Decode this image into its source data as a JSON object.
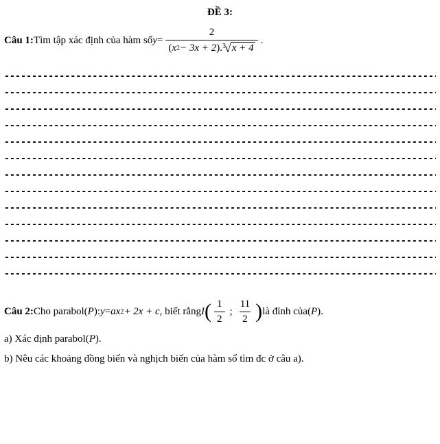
{
  "title": "ĐỀ 3:",
  "q1": {
    "label": "Câu 1:",
    "text_before": " Tìm tập xác định của hàm số  ",
    "lhs": "y",
    "eq": " = ",
    "numerator": "2",
    "den_poly_open": "(",
    "den_poly": "x",
    "den_poly_sup": "2",
    "den_poly_rest": " − 3x + 2",
    "den_poly_close": ")",
    "den_dot": ".",
    "root_index": "3",
    "radicand": "x + 4",
    "period": " ."
  },
  "dash_line": "--------------------------------------------------------------------------------------------------------------",
  "dash_count": 13,
  "q2": {
    "label": "Câu 2:",
    "text_before": " Cho parabol ",
    "P_open": "(",
    "P": "P",
    "P_close": ")",
    "colon": ": ",
    "eq_lhs": "y",
    "eq_mid": " = ",
    "eq_a": "ax",
    "eq_sup": "2",
    "eq_rest": " + 2x + c",
    "text_mid": " , biết rằng  ",
    "I": "I",
    "vertex_x_num": "1",
    "vertex_x_den": "2",
    "semicolon": ";",
    "vertex_y_num": "11",
    "vertex_y_den": "2",
    "text_after": " là đỉnh của ",
    "period": " .",
    "part_a": "a) Xác định parabol ",
    "part_a_period": " .",
    "part_b": "b) Nêu các khoảng đồng biến và nghịch biến của hàm số tìm đc ở câu a)."
  }
}
